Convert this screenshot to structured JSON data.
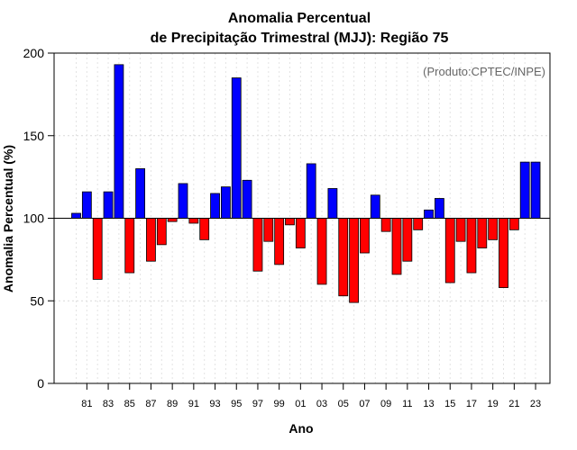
{
  "chart_data": {
    "type": "bar",
    "title_line1": "Anomalia Percentual",
    "title_line2": "de Precipitação Trimestral (MJJ): Região 75",
    "xlabel": "Ano",
    "ylabel": "Anomalia Percentual (%)",
    "credit": "(Produto:CPTEC/INPE)",
    "baseline": 100,
    "ylim": [
      0,
      200
    ],
    "yticks": [
      0,
      50,
      100,
      150,
      200
    ],
    "ytick_labels": [
      "0",
      "50",
      "100",
      "150",
      "200"
    ],
    "xtick_labels": [
      "81",
      "83",
      "85",
      "87",
      "89",
      "91",
      "93",
      "95",
      "97",
      "99",
      "01",
      "03",
      "05",
      "07",
      "09",
      "11",
      "13",
      "15",
      "17",
      "19",
      "21",
      "23"
    ],
    "grid": true,
    "colors": {
      "above": "#0000ff",
      "below": "#ff0000",
      "edge": "#000000"
    },
    "categories": [
      "80",
      "81",
      "82",
      "83",
      "84",
      "85",
      "86",
      "87",
      "88",
      "89",
      "90",
      "91",
      "92",
      "93",
      "94",
      "95",
      "96",
      "97",
      "98",
      "99",
      "00",
      "01",
      "02",
      "03",
      "04",
      "05",
      "06",
      "07",
      "08",
      "09",
      "10",
      "11",
      "12",
      "13",
      "14",
      "15",
      "16",
      "17",
      "18",
      "19",
      "20",
      "21",
      "22",
      "23"
    ],
    "values": [
      103,
      116,
      63,
      116,
      193,
      67,
      130,
      74,
      84,
      98,
      121,
      97,
      87,
      115,
      119,
      185,
      123,
      68,
      86,
      72,
      96,
      82,
      133,
      60,
      118,
      53,
      49,
      79,
      114,
      92,
      66,
      74,
      93,
      105,
      112,
      61,
      86,
      67,
      82,
      87,
      58,
      93,
      134,
      134
    ]
  }
}
